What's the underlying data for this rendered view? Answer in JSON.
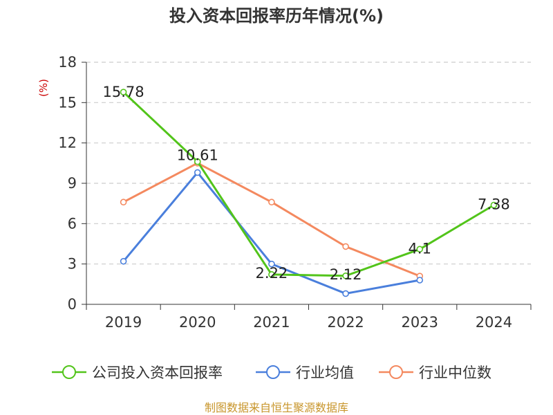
{
  "colors": {
    "company": "#52c41a",
    "industry_avg": "#4a7fdc",
    "industry_median": "#f4895f",
    "axis": "#333333",
    "grid": "#cccccc",
    "ylabel": "#cc0000",
    "source": "#c8962c"
  },
  "chart_data": {
    "type": "line",
    "title": "投入资本回报率历年情况(%)",
    "ylabel": "(%)",
    "xlabel": "",
    "categories": [
      "2019",
      "2020",
      "2021",
      "2022",
      "2023",
      "2024"
    ],
    "ylim": [
      0,
      18
    ],
    "yticks": [
      0,
      3,
      6,
      9,
      12,
      15,
      18
    ],
    "grid": true,
    "legend_position": "bottom",
    "series": [
      {
        "name": "公司投入资本回报率",
        "color_key": "company",
        "values": [
          15.78,
          10.61,
          2.22,
          2.12,
          4.1,
          7.38
        ],
        "labels": [
          "15.78",
          "10.61",
          "2.22",
          "2.12",
          "4.1",
          "7.38"
        ]
      },
      {
        "name": "行业均值",
        "color_key": "industry_avg",
        "values": [
          3.2,
          9.8,
          3.0,
          0.8,
          1.8,
          null
        ]
      },
      {
        "name": "行业中位数",
        "color_key": "industry_median",
        "values": [
          7.6,
          10.5,
          7.6,
          4.3,
          2.1,
          null
        ]
      }
    ],
    "source": "制图数据来自恒生聚源数据库"
  }
}
